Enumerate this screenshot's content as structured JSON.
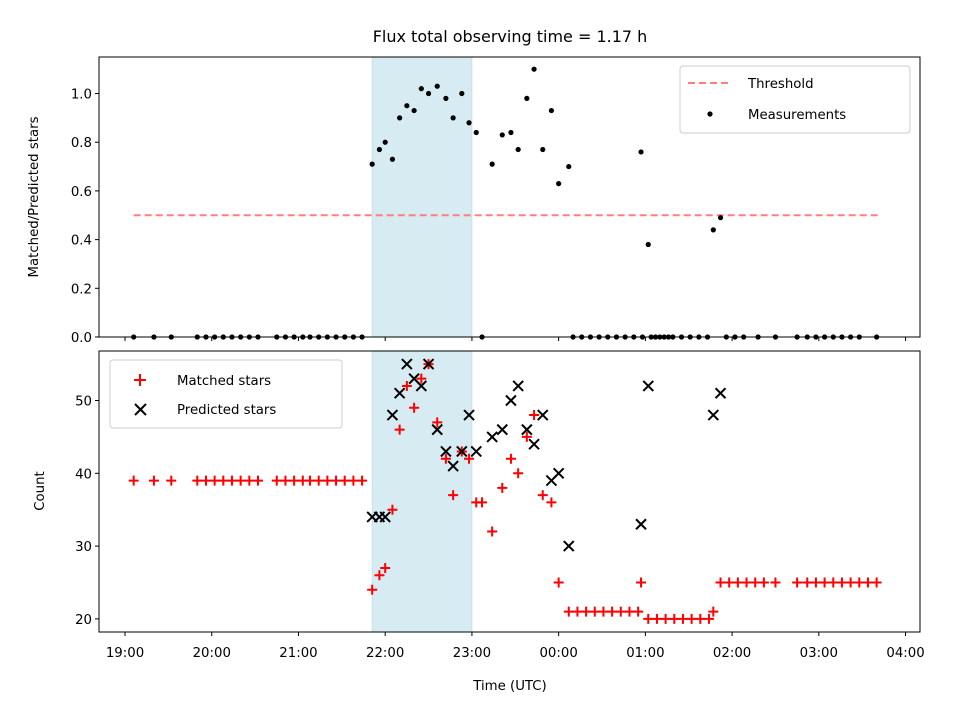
{
  "chart_data": [
    {
      "type": "scatter",
      "title": "Flux total observing time = 1.17 h",
      "ylabel": "Matched/Predicted stars",
      "xlabel": "",
      "xlim": [
        "18:42",
        "04:10"
      ],
      "ylim": [
        0,
        1.15
      ],
      "yticks": [
        "0.0",
        "0.2",
        "0.4",
        "0.6",
        "0.8",
        "1.0"
      ],
      "grid": false,
      "legend": {
        "placement": "top-right",
        "entries": [
          "Threshold",
          "Measurements"
        ]
      },
      "shaded_interval": {
        "start": "21:51",
        "end": "23:00",
        "color": "#add8e6"
      },
      "threshold": {
        "name": "Threshold",
        "value": 0.5,
        "x_start": "19:06",
        "x_end": "03:43",
        "color": "#ff7f7f"
      },
      "series": [
        {
          "name": "Measurements",
          "color": "#000000",
          "points": [
            [
              "19:06",
              0
            ],
            [
              "19:20",
              0
            ],
            [
              "19:32",
              0
            ],
            [
              "19:50",
              0
            ],
            [
              "19:56",
              0
            ],
            [
              "20:02",
              0
            ],
            [
              "20:08",
              0
            ],
            [
              "20:14",
              0
            ],
            [
              "20:20",
              0
            ],
            [
              "20:26",
              0
            ],
            [
              "20:32",
              0
            ],
            [
              "20:45",
              0
            ],
            [
              "20:51",
              0
            ],
            [
              "20:57",
              0
            ],
            [
              "21:03",
              0
            ],
            [
              "21:08",
              0
            ],
            [
              "21:14",
              0
            ],
            [
              "21:20",
              0
            ],
            [
              "21:26",
              0
            ],
            [
              "21:32",
              0
            ],
            [
              "21:38",
              0
            ],
            [
              "21:44",
              0
            ],
            [
              "21:51",
              0.71
            ],
            [
              "21:56",
              0.77
            ],
            [
              "22:00",
              0.8
            ],
            [
              "22:05",
              0.73
            ],
            [
              "22:10",
              0.9
            ],
            [
              "22:15",
              0.95
            ],
            [
              "22:20",
              0.93
            ],
            [
              "22:25",
              1.02
            ],
            [
              "22:30",
              1.0
            ],
            [
              "22:36",
              1.03
            ],
            [
              "22:42",
              0.98
            ],
            [
              "22:47",
              0.9
            ],
            [
              "22:53",
              1.0
            ],
            [
              "22:58",
              0.88
            ],
            [
              "23:03",
              0.84
            ],
            [
              "23:07",
              0
            ],
            [
              "23:14",
              0.71
            ],
            [
              "23:21",
              0.83
            ],
            [
              "23:27",
              0.84
            ],
            [
              "23:32",
              0.77
            ],
            [
              "23:38",
              0.98
            ],
            [
              "23:43",
              1.1
            ],
            [
              "23:49",
              0.77
            ],
            [
              "23:55",
              0.93
            ],
            [
              "00:00",
              0.63
            ],
            [
              "00:07",
              0.7
            ],
            [
              "00:10",
              0
            ],
            [
              "00:16",
              0
            ],
            [
              "00:22",
              0
            ],
            [
              "00:28",
              0
            ],
            [
              "00:34",
              0
            ],
            [
              "00:40",
              0
            ],
            [
              "00:46",
              0
            ],
            [
              "00:52",
              0
            ],
            [
              "00:58",
              0
            ],
            [
              "01:04",
              0
            ],
            [
              "01:10",
              0
            ],
            [
              "01:16",
              0
            ],
            [
              "00:57",
              0.76
            ],
            [
              "01:02",
              0.38
            ],
            [
              "01:07",
              0
            ],
            [
              "01:13",
              0
            ],
            [
              "01:19",
              0
            ],
            [
              "01:25",
              0
            ],
            [
              "01:31",
              0
            ],
            [
              "01:37",
              0
            ],
            [
              "01:43",
              0
            ],
            [
              "01:47",
              0.44
            ],
            [
              "01:52",
              0.49
            ],
            [
              "01:56",
              0
            ],
            [
              "02:02",
              0
            ],
            [
              "02:08",
              0
            ],
            [
              "02:18",
              0
            ],
            [
              "02:30",
              0
            ],
            [
              "02:45",
              0
            ],
            [
              "02:52",
              0
            ],
            [
              "02:58",
              0
            ],
            [
              "03:04",
              0
            ],
            [
              "03:10",
              0
            ],
            [
              "03:16",
              0
            ],
            [
              "03:22",
              0
            ],
            [
              "03:28",
              0
            ],
            [
              "03:40",
              0
            ]
          ]
        }
      ]
    },
    {
      "type": "scatter",
      "title": "",
      "ylabel": "Count",
      "xlabel": "Time (UTC)",
      "xlim": [
        "18:42",
        "04:10"
      ],
      "ylim": [
        18.2,
        56.8
      ],
      "yticks": [
        "20",
        "30",
        "40",
        "50"
      ],
      "xticks": [
        "19:00",
        "20:00",
        "21:00",
        "22:00",
        "23:00",
        "00:00",
        "01:00",
        "02:00",
        "03:00",
        "04:00"
      ],
      "grid": false,
      "legend": {
        "placement": "top-left",
        "entries": [
          "Matched stars",
          "Predicted stars"
        ]
      },
      "shaded_interval": {
        "start": "21:51",
        "end": "23:00",
        "color": "#add8e6"
      },
      "series": [
        {
          "name": "Matched stars",
          "marker": "plus",
          "color": "#ff0000",
          "points": [
            [
              "19:06",
              39
            ],
            [
              "19:20",
              39
            ],
            [
              "19:32",
              39
            ],
            [
              "19:50",
              39
            ],
            [
              "19:56",
              39
            ],
            [
              "20:02",
              39
            ],
            [
              "20:08",
              39
            ],
            [
              "20:14",
              39
            ],
            [
              "20:20",
              39
            ],
            [
              "20:26",
              39
            ],
            [
              "20:32",
              39
            ],
            [
              "20:45",
              39
            ],
            [
              "20:51",
              39
            ],
            [
              "20:57",
              39
            ],
            [
              "21:03",
              39
            ],
            [
              "21:08",
              39
            ],
            [
              "21:14",
              39
            ],
            [
              "21:20",
              39
            ],
            [
              "21:26",
              39
            ],
            [
              "21:32",
              39
            ],
            [
              "21:38",
              39
            ],
            [
              "21:44",
              39
            ],
            [
              "21:51",
              24
            ],
            [
              "21:56",
              26
            ],
            [
              "22:00",
              27
            ],
            [
              "22:05",
              35
            ],
            [
              "22:10",
              46
            ],
            [
              "22:15",
              52
            ],
            [
              "22:20",
              49
            ],
            [
              "22:25",
              53
            ],
            [
              "22:30",
              55
            ],
            [
              "22:36",
              47
            ],
            [
              "22:42",
              42
            ],
            [
              "22:47",
              37
            ],
            [
              "22:53",
              43
            ],
            [
              "22:58",
              42
            ],
            [
              "23:03",
              36
            ],
            [
              "23:07",
              36
            ],
            [
              "23:14",
              32
            ],
            [
              "23:21",
              38
            ],
            [
              "23:27",
              42
            ],
            [
              "23:32",
              40
            ],
            [
              "23:38",
              45
            ],
            [
              "23:43",
              48
            ],
            [
              "23:49",
              37
            ],
            [
              "23:55",
              36
            ],
            [
              "00:00",
              25
            ],
            [
              "00:07",
              21
            ],
            [
              "00:13",
              21
            ],
            [
              "00:19",
              21
            ],
            [
              "00:25",
              21
            ],
            [
              "00:31",
              21
            ],
            [
              "00:37",
              21
            ],
            [
              "00:43",
              21
            ],
            [
              "00:49",
              21
            ],
            [
              "00:55",
              21
            ],
            [
              "00:57",
              25
            ],
            [
              "01:02",
              20
            ],
            [
              "01:08",
              20
            ],
            [
              "01:14",
              20
            ],
            [
              "01:20",
              20
            ],
            [
              "01:26",
              20
            ],
            [
              "01:32",
              20
            ],
            [
              "01:38",
              20
            ],
            [
              "01:44",
              20
            ],
            [
              "01:47",
              21
            ],
            [
              "01:52",
              25
            ],
            [
              "01:58",
              25
            ],
            [
              "02:04",
              25
            ],
            [
              "02:10",
              25
            ],
            [
              "02:16",
              25
            ],
            [
              "02:22",
              25
            ],
            [
              "02:30",
              25
            ],
            [
              "02:45",
              25
            ],
            [
              "02:52",
              25
            ],
            [
              "02:58",
              25
            ],
            [
              "03:04",
              25
            ],
            [
              "03:10",
              25
            ],
            [
              "03:16",
              25
            ],
            [
              "03:22",
              25
            ],
            [
              "03:28",
              25
            ],
            [
              "03:34",
              25
            ],
            [
              "03:40",
              25
            ]
          ]
        },
        {
          "name": "Predicted stars",
          "marker": "x",
          "color": "#000000",
          "points": [
            [
              "21:51",
              34
            ],
            [
              "21:56",
              34
            ],
            [
              "22:00",
              34
            ],
            [
              "22:05",
              48
            ],
            [
              "22:10",
              51
            ],
            [
              "22:15",
              55
            ],
            [
              "22:20",
              53
            ],
            [
              "22:25",
              52
            ],
            [
              "22:30",
              55
            ],
            [
              "22:36",
              46
            ],
            [
              "22:42",
              43
            ],
            [
              "22:47",
              41
            ],
            [
              "22:53",
              43
            ],
            [
              "22:58",
              48
            ],
            [
              "23:03",
              43
            ],
            [
              "23:14",
              45
            ],
            [
              "23:21",
              46
            ],
            [
              "23:27",
              50
            ],
            [
              "23:32",
              52
            ],
            [
              "23:38",
              46
            ],
            [
              "23:43",
              44
            ],
            [
              "23:49",
              48
            ],
            [
              "23:55",
              39
            ],
            [
              "00:00",
              40
            ],
            [
              "00:07",
              30
            ],
            [
              "00:57",
              33
            ],
            [
              "01:02",
              52
            ],
            [
              "01:47",
              48
            ],
            [
              "01:52",
              51
            ]
          ]
        }
      ]
    }
  ]
}
